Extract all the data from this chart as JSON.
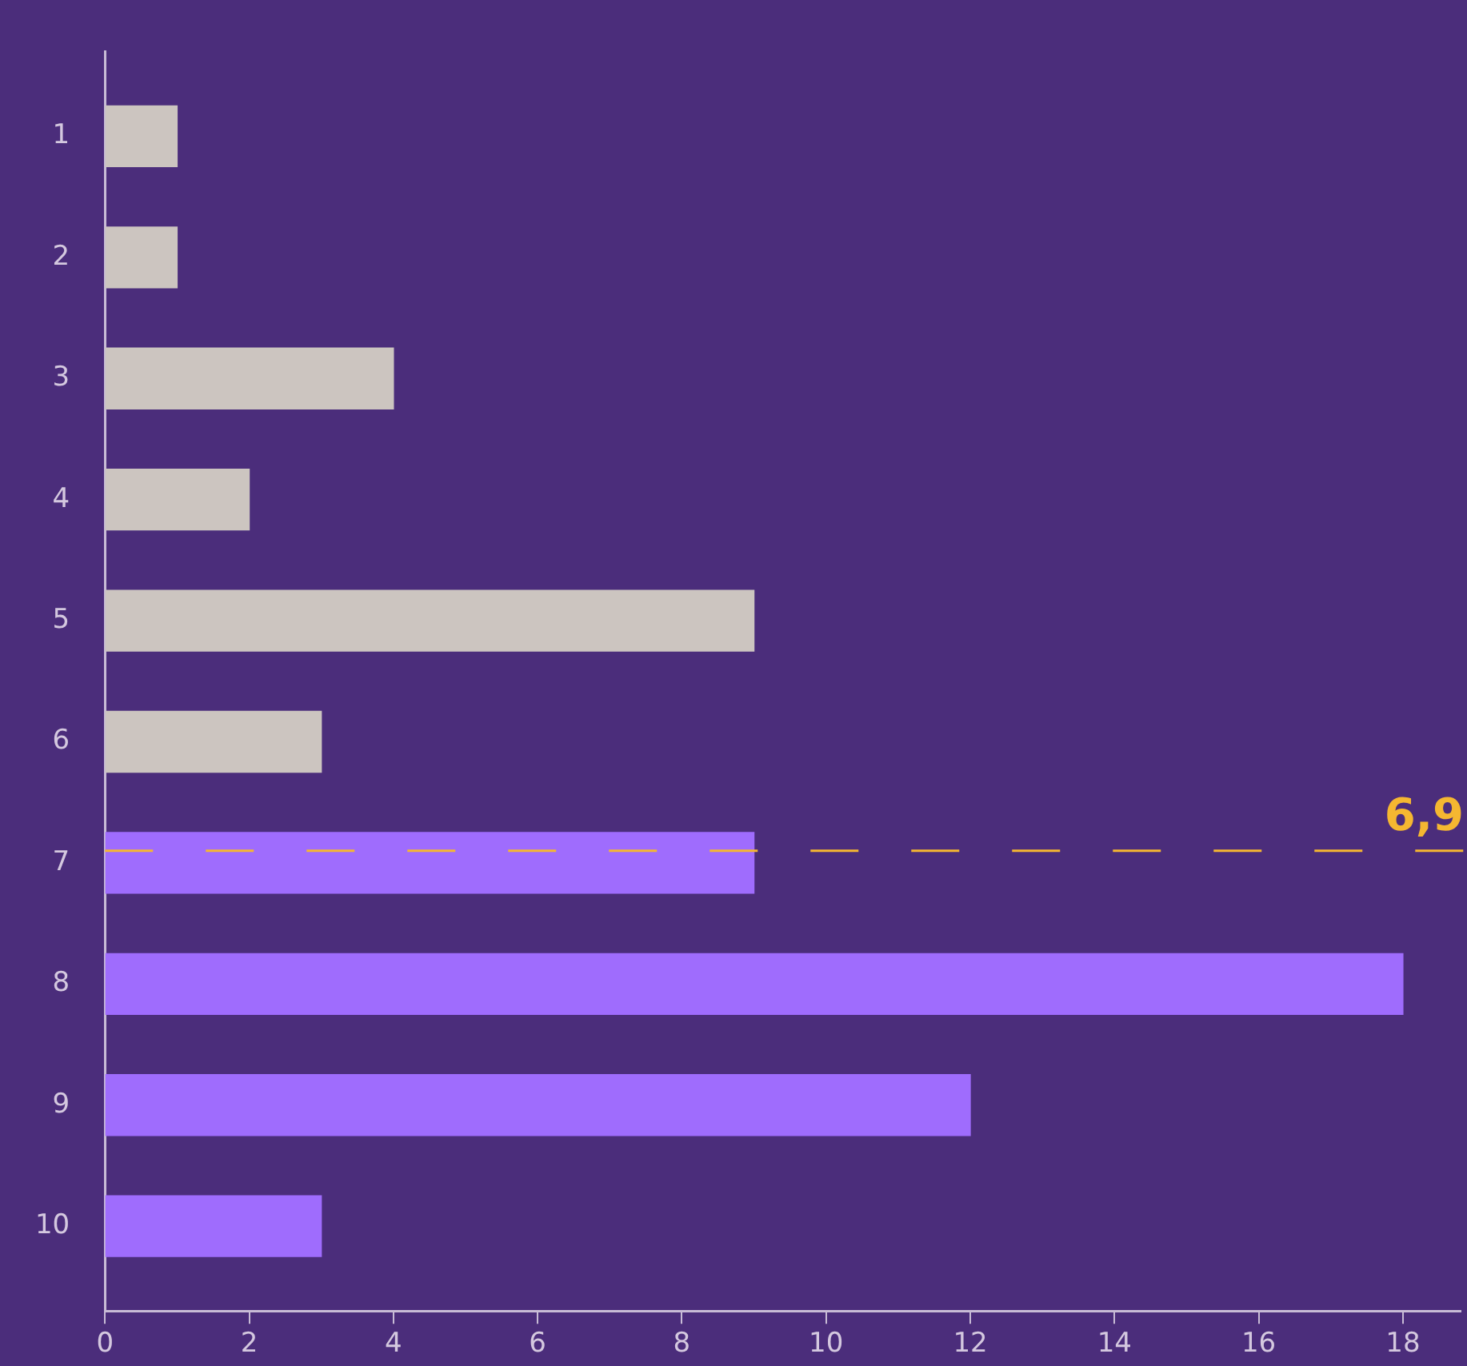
{
  "chart_data": {
    "type": "bar",
    "orientation": "horizontal",
    "x": [
      1,
      2,
      3,
      4,
      5,
      6,
      7,
      8,
      9,
      10
    ],
    "values": [
      1,
      1,
      4,
      2,
      9,
      3,
      9,
      18,
      12,
      3
    ],
    "colors": [
      "#ccc5c0",
      "#ccc5c0",
      "#ccc5c0",
      "#ccc5c0",
      "#ccc5c0",
      "#ccc5c0",
      "#9f6cfd",
      "#9f6cfd",
      "#9f6cfd",
      "#9f6cfd"
    ],
    "xlim": [
      0,
      18.8
    ],
    "xticks": [
      0,
      2,
      4,
      6,
      8,
      10,
      12,
      14,
      16,
      18
    ],
    "ylim": [
      10.7,
      0.3
    ],
    "yticks": [
      1,
      2,
      3,
      4,
      5,
      6,
      7,
      8,
      9,
      10
    ],
    "ref_lines": [
      {
        "axis": "y",
        "value": 6.9,
        "label": "6,9",
        "color": "#f5b731",
        "line_style": "dashed"
      }
    ],
    "grid": false,
    "legend": false
  }
}
